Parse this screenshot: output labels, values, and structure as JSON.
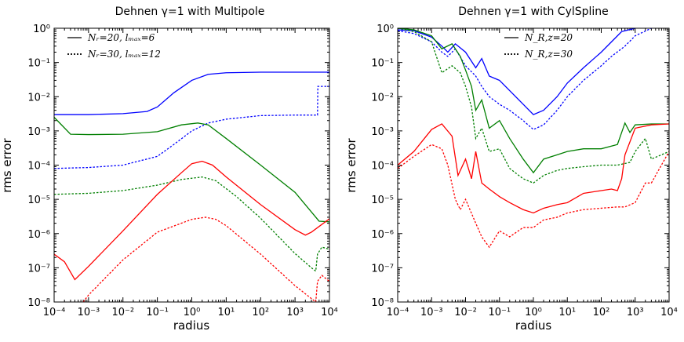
{
  "chart_data": [
    {
      "type": "line",
      "title": "Dehnen γ=1  with  Multipole",
      "xlabel": "radius",
      "ylabel": "rms error",
      "xscale": "log",
      "yscale": "log",
      "xlim": [
        0.0001,
        10000
      ],
      "ylim": [
        1e-08,
        1
      ],
      "x_tick_labels": [
        "10⁻⁴",
        "10⁻³",
        "10⁻²",
        "10⁻¹",
        "10⁰",
        "10¹",
        "10²",
        "10³",
        "10⁴"
      ],
      "y_tick_labels": [
        "10⁻⁸",
        "10⁻⁷",
        "10⁻⁶",
        "10⁻⁵",
        "10⁻⁴",
        "10⁻³",
        "10⁻²",
        "10⁻¹",
        "10⁰"
      ],
      "legend": [
        {
          "label": "Nᵣ=20, lₘₐₓ=6",
          "style": "solid"
        },
        {
          "label": "Nᵣ=30, lₘₐₓ=12",
          "style": "dotted"
        }
      ],
      "legend_position": "top-left",
      "series": [
        {
          "name": "blue Nᵣ=20",
          "color": "#0000ff",
          "style": "solid",
          "x": [
            0.0001,
            0.001,
            0.01,
            0.05,
            0.1,
            0.3,
            1,
            3,
            10,
            100,
            1000,
            10000
          ],
          "y": [
            0.003,
            0.003,
            0.0032,
            0.0037,
            0.005,
            0.013,
            0.03,
            0.045,
            0.05,
            0.052,
            0.052,
            0.052
          ]
        },
        {
          "name": "blue Nᵣ=30",
          "color": "#0000ff",
          "style": "dotted",
          "x": [
            0.0001,
            0.001,
            0.01,
            0.1,
            0.3,
            1,
            3,
            10,
            100,
            1000,
            4000,
            4500,
            4600,
            10000
          ],
          "y": [
            8e-05,
            8.5e-05,
            0.0001,
            0.00018,
            0.0004,
            0.001,
            0.0017,
            0.0022,
            0.0028,
            0.0029,
            0.0029,
            0.0029,
            0.02,
            0.02
          ]
        },
        {
          "name": "green Nᵣ=20",
          "color": "#007f00",
          "style": "solid",
          "x": [
            0.0001,
            0.0003,
            0.001,
            0.01,
            0.1,
            0.5,
            1.5,
            3,
            10,
            100,
            1000,
            5000,
            10000
          ],
          "y": [
            0.0025,
            0.0008,
            0.00078,
            0.0008,
            0.00095,
            0.0015,
            0.0017,
            0.0015,
            0.0006,
            0.0001,
            1.6e-05,
            2.3e-06,
            2.2e-06
          ]
        },
        {
          "name": "green Nᵣ=30",
          "color": "#007f00",
          "style": "dotted",
          "x": [
            0.0001,
            0.001,
            0.01,
            0.1,
            0.5,
            2,
            5,
            20,
            100,
            1000,
            3000,
            4000,
            4500,
            6000,
            10000
          ],
          "y": [
            1.4e-05,
            1.5e-05,
            1.8e-05,
            2.6e-05,
            3.8e-05,
            4.5e-05,
            3.5e-05,
            1.2e-05,
            2.8e-06,
            2.6e-07,
            1e-07,
            8e-08,
            2.5e-07,
            4e-07,
            3.5e-07
          ]
        },
        {
          "name": "red Nᵣ=20",
          "color": "#ff0000",
          "style": "solid",
          "x": [
            0.0001,
            0.0002,
            0.0004,
            0.001,
            0.01,
            0.1,
            0.5,
            1,
            2,
            4,
            10,
            100,
            1000,
            2000,
            3000,
            10000
          ],
          "y": [
            2.5e-07,
            1.5e-07,
            4.5e-08,
            1.1e-07,
            1.2e-06,
            1.4e-05,
            6e-05,
            0.00011,
            0.00013,
            0.0001,
            4.5e-05,
            7e-06,
            1.3e-06,
            9e-07,
            1.1e-06,
            2.7e-06
          ]
        },
        {
          "name": "red Nᵣ=30",
          "color": "#ff0000",
          "style": "dotted",
          "x": [
            0.0007,
            0.001,
            0.01,
            0.1,
            1,
            2.5,
            5,
            10,
            100,
            1000,
            4000,
            4500,
            6000,
            10000
          ],
          "y": [
            1e-08,
            1.6e-08,
            1.7e-07,
            1.1e-06,
            2.6e-06,
            3e-06,
            2.6e-06,
            1.7e-06,
            2.5e-07,
            3e-08,
            1e-08,
            4e-08,
            6e-08,
            4e-08
          ]
        }
      ]
    },
    {
      "type": "line",
      "title": "Dehnen γ=1  with  CylSpline",
      "xlabel": "radius",
      "ylabel": "rms error",
      "xscale": "log",
      "yscale": "log",
      "xlim": [
        0.0001,
        10000
      ],
      "ylim": [
        1e-08,
        1
      ],
      "x_tick_labels": [
        "10⁻⁴",
        "10⁻³",
        "10⁻²",
        "10⁻¹",
        "10⁰",
        "10¹",
        "10²",
        "10³",
        "10⁴"
      ],
      "y_tick_labels": [
        "10⁻⁸",
        "10⁻⁷",
        "10⁻⁶",
        "10⁻⁵",
        "10⁻⁴",
        "10⁻³",
        "10⁻²",
        "10⁻¹",
        "10⁰"
      ],
      "legend": [
        {
          "label": "N_R,z=20",
          "style": "solid"
        },
        {
          "label": "N_R,z=30",
          "style": "dotted"
        }
      ],
      "legend_position": "top-center",
      "series": [
        {
          "name": "blue N=20",
          "color": "#0000ff",
          "style": "solid",
          "x": [
            0.0001,
            0.0003,
            0.001,
            0.002,
            0.003,
            0.005,
            0.01,
            0.02,
            0.03,
            0.05,
            0.1,
            0.2,
            0.5,
            1,
            2,
            5,
            10,
            30,
            100,
            200,
            400,
            1000
          ],
          "y": [
            0.9,
            0.85,
            0.55,
            0.3,
            0.2,
            0.35,
            0.2,
            0.07,
            0.13,
            0.04,
            0.03,
            0.015,
            0.006,
            0.003,
            0.004,
            0.01,
            0.025,
            0.07,
            0.2,
            0.4,
            0.8,
            1
          ]
        },
        {
          "name": "blue N=30",
          "color": "#0000ff",
          "style": "dotted",
          "x": [
            0.0001,
            0.0003,
            0.001,
            0.002,
            0.003,
            0.005,
            0.01,
            0.02,
            0.03,
            0.05,
            0.1,
            0.2,
            0.5,
            1,
            2,
            5,
            10,
            30,
            100,
            200,
            500,
            1000,
            3000
          ],
          "y": [
            0.85,
            0.7,
            0.4,
            0.2,
            0.15,
            0.25,
            0.08,
            0.04,
            0.02,
            0.01,
            0.006,
            0.004,
            0.002,
            0.0011,
            0.0015,
            0.004,
            0.01,
            0.03,
            0.08,
            0.15,
            0.3,
            0.6,
            1
          ]
        },
        {
          "name": "green N=20",
          "color": "#007f00",
          "style": "solid",
          "x": [
            0.0001,
            0.0003,
            0.001,
            0.002,
            0.004,
            0.007,
            0.01,
            0.015,
            0.02,
            0.03,
            0.05,
            0.1,
            0.2,
            0.5,
            1,
            2,
            5,
            10,
            30,
            100,
            300,
            500,
            700,
            1000,
            3000,
            10000
          ],
          "y": [
            1,
            0.9,
            0.6,
            0.25,
            0.35,
            0.15,
            0.06,
            0.02,
            0.004,
            0.008,
            0.0012,
            0.002,
            0.0006,
            0.00015,
            6e-05,
            0.00015,
            0.0002,
            0.00025,
            0.0003,
            0.0003,
            0.0004,
            0.0017,
            0.0009,
            0.0015,
            0.0016,
            0.0016
          ]
        },
        {
          "name": "green N=30",
          "color": "#007f00",
          "style": "dotted",
          "x": [
            0.0001,
            0.0003,
            0.001,
            0.002,
            0.004,
            0.007,
            0.01,
            0.015,
            0.02,
            0.03,
            0.05,
            0.1,
            0.2,
            0.5,
            1,
            2,
            5,
            10,
            30,
            100,
            300,
            700,
            1000,
            2000,
            3000,
            10000
          ],
          "y": [
            1,
            0.8,
            0.4,
            0.05,
            0.08,
            0.05,
            0.02,
            0.005,
            0.0006,
            0.0012,
            0.00025,
            0.0003,
            8e-05,
            4e-05,
            3e-05,
            5e-05,
            7e-05,
            8e-05,
            9e-05,
            0.0001,
            0.0001,
            0.00012,
            0.00025,
            0.0006,
            0.00015,
            0.00025
          ]
        },
        {
          "name": "red N=20",
          "color": "#ff0000",
          "style": "solid",
          "x": [
            0.0001,
            0.0003,
            0.001,
            0.002,
            0.004,
            0.006,
            0.01,
            0.015,
            0.02,
            0.03,
            0.05,
            0.1,
            0.2,
            0.5,
            1,
            2,
            5,
            10,
            30,
            100,
            200,
            300,
            400,
            500,
            1000,
            3000,
            10000
          ],
          "y": [
            0.0001,
            0.00025,
            0.0011,
            0.0016,
            0.0007,
            5e-05,
            0.00015,
            4e-05,
            0.00025,
            3e-05,
            2e-05,
            1.2e-05,
            8e-06,
            5e-06,
            4e-06,
            5.5e-06,
            7e-06,
            8e-06,
            1.5e-05,
            1.8e-05,
            2e-05,
            1.8e-05,
            4e-05,
            0.0002,
            0.0012,
            0.0015,
            0.0016
          ]
        },
        {
          "name": "red N=30",
          "color": "#ff0000",
          "style": "dotted",
          "x": [
            0.0001,
            0.0003,
            0.001,
            0.002,
            0.003,
            0.005,
            0.007,
            0.01,
            0.02,
            0.03,
            0.05,
            0.1,
            0.2,
            0.5,
            1,
            2,
            5,
            10,
            30,
            100,
            300,
            500,
            1000,
            2000,
            3000,
            10000
          ],
          "y": [
            8e-05,
            0.00018,
            0.0004,
            0.0003,
            0.0001,
            1e-05,
            5e-06,
            1e-05,
            2e-06,
            8e-07,
            4e-07,
            1.2e-06,
            8e-07,
            1.5e-06,
            1.5e-06,
            2.5e-06,
            3e-06,
            4e-06,
            5e-06,
            5.5e-06,
            6e-06,
            6e-06,
            8e-06,
            3e-05,
            3e-05,
            0.00025
          ]
        }
      ]
    }
  ]
}
